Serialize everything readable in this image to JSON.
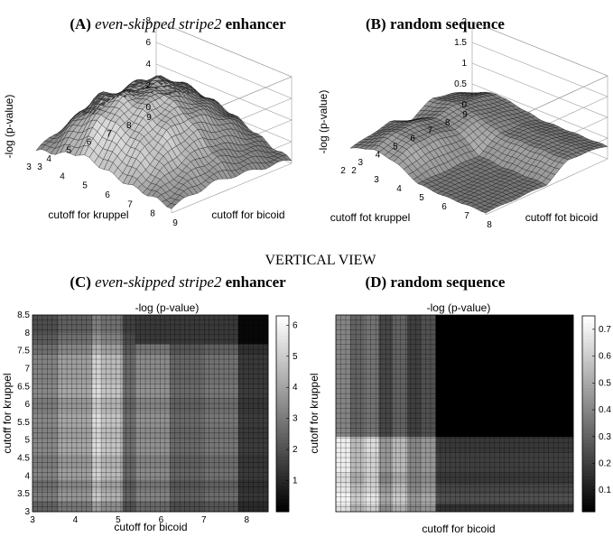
{
  "figure": {
    "section_label": "VERTICAL VIEW"
  },
  "chart_data": [
    {
      "panel": "A",
      "type": "surface",
      "title": {
        "prefix": "(A)",
        "italic": "even-skipped stripe2",
        "suffix": "enhancer"
      },
      "xlabel": "cutoff for bicoid",
      "ylabel": "cutoff for kruppel",
      "zlabel": "-log (p-value)",
      "x_ticks": [
        "3",
        "4",
        "5",
        "6",
        "7",
        "8",
        "9"
      ],
      "y_ticks": [
        "3",
        "4",
        "5",
        "6",
        "7",
        "8",
        "9"
      ],
      "z_ticks": [
        "0",
        "2",
        "4",
        "6",
        "8"
      ],
      "zlim": [
        0,
        8
      ],
      "x_range": [
        3,
        9
      ],
      "y_range": [
        3,
        9
      ],
      "z": [
        [
          0.6,
          1.2,
          2.0,
          1.5,
          1.0,
          0.8,
          0.5
        ],
        [
          1.5,
          3.5,
          4.8,
          4.0,
          3.2,
          1.8,
          0.9
        ],
        [
          2.2,
          5.2,
          6.0,
          5.5,
          4.6,
          2.6,
          1.2
        ],
        [
          1.8,
          4.6,
          5.6,
          6.2,
          5.0,
          2.9,
          1.1
        ],
        [
          2.4,
          5.0,
          6.1,
          5.4,
          4.4,
          2.2,
          0.8
        ],
        [
          1.6,
          3.8,
          4.9,
          4.2,
          3.3,
          1.6,
          0.6
        ],
        [
          0.8,
          2.0,
          3.0,
          2.6,
          1.8,
          0.9,
          0.3
        ]
      ]
    },
    {
      "panel": "B",
      "type": "surface",
      "title": {
        "prefix": "(B)",
        "italic": "",
        "suffix": "random sequence"
      },
      "xlabel": "cutoff fot bicoid",
      "ylabel": "cutoff fot kruppel",
      "zlabel": "-log (p-value)",
      "x_ticks": [
        "2",
        "3",
        "4",
        "5",
        "6",
        "7",
        "8"
      ],
      "y_ticks": [
        "2",
        "3",
        "4",
        "5",
        "6",
        "7",
        "8",
        "9"
      ],
      "z_ticks": [
        "0",
        "0.5",
        "1",
        "1.5",
        "2"
      ],
      "zlim": [
        0,
        2
      ],
      "x_range": [
        2,
        8
      ],
      "y_range": [
        2,
        9
      ],
      "z": [
        [
          0.3,
          0.5,
          0.4,
          0.1,
          0.05,
          0.05,
          0.05
        ],
        [
          0.4,
          0.7,
          0.6,
          0.1,
          0.05,
          0.05,
          0.05
        ],
        [
          0.5,
          0.7,
          0.6,
          0.1,
          0.05,
          0.05,
          0.05
        ],
        [
          0.3,
          0.6,
          0.5,
          0.1,
          0.05,
          0.05,
          0.05
        ],
        [
          0.6,
          0.7,
          0.6,
          0.4,
          0.4,
          0.4,
          0.4
        ],
        [
          0.5,
          0.6,
          0.5,
          0.4,
          0.4,
          0.4,
          0.4
        ],
        [
          0.3,
          0.5,
          0.4,
          0.3,
          0.3,
          0.3,
          0.3
        ]
      ]
    },
    {
      "panel": "C",
      "type": "heatmap",
      "title": {
        "prefix": "(C)",
        "italic": "even-skipped stripe2",
        "suffix": "enhancer"
      },
      "subtitle": "-log (p-value)",
      "xlabel": "cutoff for bicoid",
      "ylabel": "cutoff for kruppel",
      "x_ticks": [
        "3",
        "4",
        "5",
        "6",
        "7",
        "8"
      ],
      "y_ticks": [
        "3",
        "3.5",
        "4",
        "4.5",
        "5",
        "5.5",
        "6",
        "6.5",
        "7",
        "7.5",
        "8",
        "8.5"
      ],
      "xlim": [
        3,
        8.5
      ],
      "ylim": [
        3,
        8.5
      ],
      "colorbar_ticks": [
        "1",
        "2",
        "3",
        "4",
        "5",
        "6"
      ],
      "colorbar_range": [
        0,
        6.3
      ],
      "column_edges": [
        3,
        3.6,
        4.4,
        4.6,
        5.1,
        5.4,
        6.2,
        7.0,
        7.8,
        8.5
      ],
      "column_values": [
        3.2,
        3.9,
        5.2,
        4.6,
        2.6,
        3.4,
        2.5,
        2.8,
        1.4
      ],
      "row_edges": [
        3,
        3.3,
        3.6,
        3.9,
        4.2,
        4.6,
        5.0,
        5.4,
        5.8,
        6.2,
        6.6,
        7.0,
        7.4,
        7.7,
        8.0,
        8.5
      ],
      "row_factors": [
        0.75,
        0.95,
        0.85,
        1.0,
        0.95,
        1.05,
        1.0,
        1.05,
        0.95,
        1.05,
        1.0,
        1.0,
        0.85,
        0.7,
        0.6
      ],
      "overrides": [
        {
          "x": [
            7.8,
            8.5
          ],
          "y": [
            7.7,
            8.5
          ],
          "value": 0.2
        },
        {
          "x": [
            5.4,
            7.8
          ],
          "y": [
            7.7,
            8.5
          ],
          "value": 1.4
        }
      ]
    },
    {
      "panel": "D",
      "type": "heatmap",
      "title": {
        "prefix": "(D)",
        "italic": "",
        "suffix": "random sequence"
      },
      "subtitle": "-log (p-value)",
      "xlabel": "cutoff for bicoid",
      "ylabel": "cutoff for kruppel",
      "colorbar_ticks": [
        "0.1",
        "0.2",
        "0.3",
        "0.4",
        "0.5",
        "0.6",
        "0.7"
      ],
      "colorbar_range": [
        0.02,
        0.75
      ],
      "column_edges": [
        0,
        0.06,
        0.12,
        0.18,
        0.24,
        0.3,
        0.36,
        0.42,
        1.0
      ],
      "row_edges": [
        0,
        0.55,
        0.62,
        0.7,
        0.8,
        0.86,
        0.91,
        0.96,
        1.0
      ],
      "rows": [
        [
          0.4,
          0.3,
          0.35,
          0.22,
          0.3,
          0.2,
          0.25,
          0.02
        ],
        [
          0.4,
          0.3,
          0.35,
          0.22,
          0.3,
          0.2,
          0.25,
          0.02
        ],
        [
          0.7,
          0.55,
          0.65,
          0.45,
          0.55,
          0.4,
          0.45,
          0.18
        ],
        [
          0.7,
          0.55,
          0.62,
          0.45,
          0.55,
          0.4,
          0.45,
          0.2
        ],
        [
          0.65,
          0.5,
          0.6,
          0.4,
          0.5,
          0.38,
          0.42,
          0.18
        ],
        [
          0.68,
          0.55,
          0.62,
          0.45,
          0.55,
          0.4,
          0.45,
          0.22
        ],
        [
          0.72,
          0.6,
          0.68,
          0.5,
          0.6,
          0.45,
          0.5,
          0.25
        ],
        [
          0.66,
          0.52,
          0.6,
          0.42,
          0.52,
          0.4,
          0.44,
          0.16
        ]
      ]
    }
  ]
}
